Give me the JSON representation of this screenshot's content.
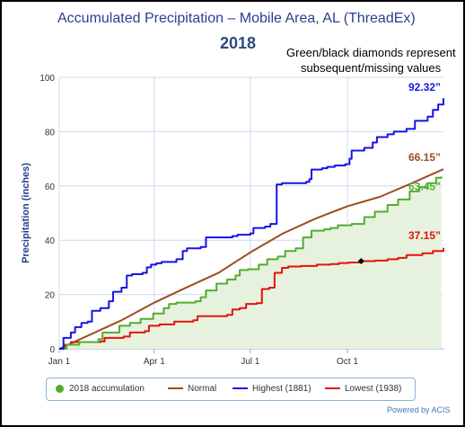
{
  "title": "Accumulated Precipitation – Mobile Area, AL (ThreadEx)",
  "subtitle": "2018",
  "note_line1": "Green/black diamonds represent",
  "note_line2": "subsequent/missing values",
  "credit": "Powered by ACIS",
  "colors": {
    "accumulation": "#52ad2e",
    "accumulation_fill": "#e6f2dd",
    "normal": "#9b4e22",
    "highest": "#1515e6",
    "lowest": "#e4120e",
    "grid": "#c8dced",
    "axis_title": "#2a3f8f"
  },
  "chart_data": {
    "type": "line",
    "title": "Accumulated Precipitation – Mobile Area, AL (ThreadEx)",
    "subtitle": "2018",
    "xlabel": "",
    "ylabel": "Precipitation (inches)",
    "ylim": [
      0,
      100
    ],
    "yticks": [
      "0",
      "20",
      "40",
      "60",
      "80",
      "100"
    ],
    "xticks": [
      {
        "label": "Jan 1",
        "day": 1
      },
      {
        "label": "Apr 1",
        "day": 91
      },
      {
        "label": "Jul 1",
        "day": 182
      },
      {
        "label": "Oct 1",
        "day": 274
      }
    ],
    "xlim": [
      1,
      365
    ],
    "grid": true,
    "legend_position": "bottom",
    "series": [
      {
        "name": "2018 accumulation",
        "key": "accum",
        "fill": true,
        "points": [
          [
            1,
            0
          ],
          [
            8,
            1.5
          ],
          [
            20,
            2.5
          ],
          [
            38,
            3.5
          ],
          [
            42,
            6
          ],
          [
            58,
            8.5
          ],
          [
            68,
            9.5
          ],
          [
            78,
            11
          ],
          [
            90,
            13
          ],
          [
            100,
            15
          ],
          [
            105,
            16.5
          ],
          [
            112,
            17
          ],
          [
            130,
            17.5
          ],
          [
            135,
            19
          ],
          [
            140,
            21.5
          ],
          [
            150,
            24
          ],
          [
            160,
            25.5
          ],
          [
            168,
            27
          ],
          [
            172,
            29
          ],
          [
            180,
            29.3
          ],
          [
            190,
            31
          ],
          [
            198,
            33
          ],
          [
            208,
            34
          ],
          [
            215,
            36
          ],
          [
            225,
            37
          ],
          [
            232,
            41
          ],
          [
            240,
            43.5
          ],
          [
            252,
            44
          ],
          [
            258,
            44.5
          ],
          [
            265,
            45.5
          ],
          [
            278,
            46
          ],
          [
            290,
            48.5
          ],
          [
            300,
            50.5
          ],
          [
            312,
            53
          ],
          [
            322,
            55
          ],
          [
            333,
            58
          ],
          [
            342,
            59.5
          ],
          [
            350,
            61
          ],
          [
            358,
            63
          ],
          [
            363,
            63.45
          ]
        ]
      },
      {
        "name": "Normal",
        "key": "normal",
        "points": [
          [
            1,
            0
          ],
          [
            60,
            10.5
          ],
          [
            91,
            17
          ],
          [
            121,
            22.5
          ],
          [
            152,
            28
          ],
          [
            182,
            35.5
          ],
          [
            213,
            42.5
          ],
          [
            244,
            48
          ],
          [
            274,
            52.5
          ],
          [
            305,
            56
          ],
          [
            335,
            61
          ],
          [
            365,
            66.15
          ]
        ]
      },
      {
        "name": "Highest (1881)",
        "key": "high",
        "points": [
          [
            1,
            0
          ],
          [
            5,
            4
          ],
          [
            12,
            6
          ],
          [
            16,
            8
          ],
          [
            22,
            9.5
          ],
          [
            28,
            10
          ],
          [
            32,
            14
          ],
          [
            40,
            15
          ],
          [
            48,
            17.5
          ],
          [
            52,
            21
          ],
          [
            60,
            22.5
          ],
          [
            65,
            27
          ],
          [
            70,
            27.5
          ],
          [
            80,
            28
          ],
          [
            84,
            30
          ],
          [
            88,
            31
          ],
          [
            93,
            31.5
          ],
          [
            98,
            32
          ],
          [
            112,
            33
          ],
          [
            118,
            36
          ],
          [
            122,
            37
          ],
          [
            135,
            37.5
          ],
          [
            140,
            41
          ],
          [
            165,
            41.5
          ],
          [
            170,
            42
          ],
          [
            182,
            42.5
          ],
          [
            185,
            44.5
          ],
          [
            196,
            45
          ],
          [
            201,
            46
          ],
          [
            207,
            60.5
          ],
          [
            212,
            61
          ],
          [
            235,
            61.5
          ],
          [
            238,
            62.5
          ],
          [
            240,
            66
          ],
          [
            250,
            66.5
          ],
          [
            255,
            67
          ],
          [
            262,
            67.5
          ],
          [
            272,
            68
          ],
          [
            276,
            70
          ],
          [
            278,
            73
          ],
          [
            290,
            74
          ],
          [
            298,
            76
          ],
          [
            302,
            78
          ],
          [
            312,
            79
          ],
          [
            318,
            80
          ],
          [
            330,
            81
          ],
          [
            338,
            84
          ],
          [
            350,
            85.5
          ],
          [
            355,
            88
          ],
          [
            360,
            90
          ],
          [
            365,
            92.32
          ]
        ]
      },
      {
        "name": "Lowest (1938)",
        "key": "low",
        "points": [
          [
            1,
            0
          ],
          [
            6,
            1.5
          ],
          [
            12,
            2.5
          ],
          [
            40,
            2.7
          ],
          [
            44,
            4
          ],
          [
            62,
            4.5
          ],
          [
            68,
            6
          ],
          [
            82,
            6.5
          ],
          [
            86,
            8.5
          ],
          [
            96,
            9
          ],
          [
            110,
            10
          ],
          [
            128,
            10.5
          ],
          [
            132,
            12
          ],
          [
            160,
            12.5
          ],
          [
            165,
            14.5
          ],
          [
            172,
            15
          ],
          [
            178,
            16.5
          ],
          [
            188,
            16.8
          ],
          [
            193,
            22
          ],
          [
            200,
            22.5
          ],
          [
            205,
            28
          ],
          [
            212,
            29.8
          ],
          [
            218,
            30.3
          ],
          [
            230,
            30.5
          ],
          [
            245,
            31
          ],
          [
            258,
            31.2
          ],
          [
            266,
            31.6
          ],
          [
            275,
            31.8
          ],
          [
            286,
            32.3
          ],
          [
            300,
            32.5
          ],
          [
            312,
            33
          ],
          [
            322,
            33.5
          ],
          [
            330,
            34.5
          ],
          [
            345,
            35.2
          ],
          [
            355,
            36
          ],
          [
            365,
            37.15
          ]
        ]
      }
    ],
    "end_labels": [
      {
        "key": "high",
        "text": "92.32”",
        "value": 92.32
      },
      {
        "key": "normal",
        "text": "66.15”",
        "value": 66.15
      },
      {
        "key": "accum",
        "text": "63.45”",
        "value": 63.45
      },
      {
        "key": "low",
        "text": "37.15”",
        "value": 37.15
      }
    ],
    "missing_markers": [
      {
        "day": 287,
        "value": 32.3
      }
    ]
  }
}
